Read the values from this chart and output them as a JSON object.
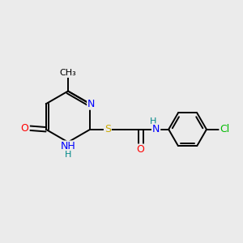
{
  "background_color": "#ebebeb",
  "bond_color": "#000000",
  "atom_colors": {
    "N": "#0000ff",
    "O": "#ff0000",
    "S": "#ccaa00",
    "Cl": "#00bb00",
    "H": "#008888",
    "C": "#000000"
  },
  "figsize": [
    3.0,
    3.0
  ],
  "dpi": 100
}
